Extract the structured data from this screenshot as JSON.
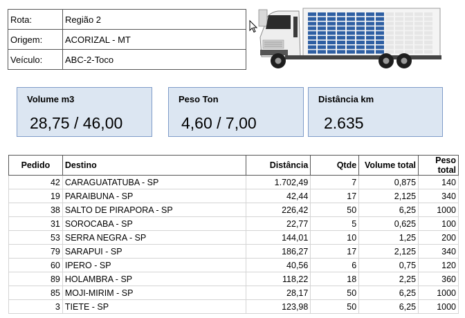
{
  "info": {
    "rota_label": "Rota:",
    "rota_value": "Região 2",
    "origem_label": "Origem:",
    "origem_value": "ACORIZAL - MT",
    "veiculo_label": "Veículo:",
    "veiculo_value": "ABC-2-Toco"
  },
  "truck": {
    "cargo_fill": 0.64,
    "accent_color": "#2e5fa3"
  },
  "cards": {
    "volume": {
      "title": "Volume m3",
      "value": "28,75 / 46,00"
    },
    "peso": {
      "title": "Peso Ton",
      "value": "4,60 / 7,00"
    },
    "distancia": {
      "title": "Distância km",
      "value": "2.635"
    }
  },
  "table": {
    "headers": [
      "Pedido",
      "Destino",
      "Distância",
      "Qtde",
      "Volume total",
      "Peso total"
    ],
    "rows": [
      [
        "42",
        "CARAGUATATUBA - SP",
        "1.702,49",
        "7",
        "0,875",
        "140"
      ],
      [
        "19",
        "PARAIBUNA - SP",
        "42,44",
        "17",
        "2,125",
        "340"
      ],
      [
        "38",
        "SALTO DE PIRAPORA - SP",
        "226,42",
        "50",
        "6,25",
        "1000"
      ],
      [
        "31",
        "SOROCABA - SP",
        "22,77",
        "5",
        "0,625",
        "100"
      ],
      [
        "53",
        "SERRA NEGRA - SP",
        "144,01",
        "10",
        "1,25",
        "200"
      ],
      [
        "79",
        "SARAPUI - SP",
        "186,27",
        "17",
        "2,125",
        "340"
      ],
      [
        "60",
        "IPERO - SP",
        "40,56",
        "6",
        "0,75",
        "120"
      ],
      [
        "89",
        "HOLAMBRA - SP",
        "118,22",
        "18",
        "2,25",
        "360"
      ],
      [
        "85",
        "MOJI-MIRIM - SP",
        "28,17",
        "50",
        "6,25",
        "1000"
      ],
      [
        "3",
        "TIETE - SP",
        "123,98",
        "50",
        "6,25",
        "1000"
      ]
    ]
  }
}
